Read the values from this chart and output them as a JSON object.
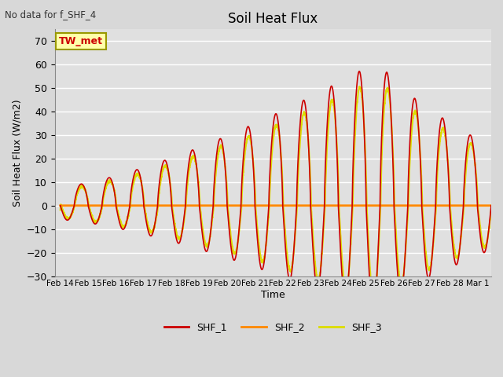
{
  "title": "Soil Heat Flux",
  "xlabel": "Time",
  "ylabel": "Soil Heat Flux (W/m2)",
  "note": "No data for f_SHF_4",
  "annotation": "TW_met",
  "ylim": [
    -30,
    75
  ],
  "yticks": [
    -30,
    -20,
    -10,
    0,
    10,
    20,
    30,
    40,
    50,
    60,
    70
  ],
  "series_colors": {
    "SHF_1": "#cc0000",
    "SHF_2": "#ff8800",
    "SHF_3": "#dddd00"
  },
  "background_color": "#e0e0e0",
  "grid_color": "#ffffff",
  "day_labels": [
    "Feb 14",
    "Feb 15",
    "Feb 16",
    "Feb 17",
    "Feb 18",
    "Feb 19",
    "Feb 20",
    "Feb 21",
    "Feb 22",
    "Feb 23",
    "Feb 24",
    "Feb 25",
    "Feb 26",
    "Feb 27",
    "Feb 28",
    "Mar 1"
  ],
  "legend_labels": [
    "SHF_1",
    "SHF_2",
    "SHF_3"
  ]
}
